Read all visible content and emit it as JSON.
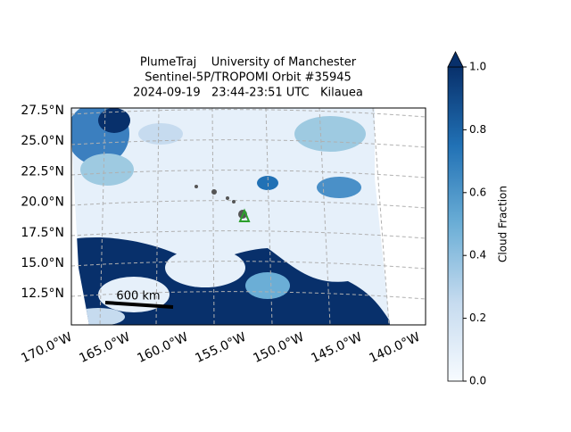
{
  "header": {
    "title_lines": [
      "PlumeTraj    University of Manchester",
      "Sentinel-5P/TROPOMI Orbit #35945",
      "2024-09-19   23:44-23:51 UTC   Kilauea"
    ]
  },
  "map": {
    "lat_labels": [
      "27.5°N",
      "25.0°N",
      "22.5°N",
      "20.0°N",
      "17.5°N",
      "15.0°N",
      "12.5°N"
    ],
    "lon_labels": [
      "170.0°W",
      "165.0°W",
      "160.0°W",
      "155.0°W",
      "150.0°W",
      "145.0°W",
      "140.0°W"
    ],
    "scale_bar": "600 km"
  },
  "colorbar": {
    "label": "Cloud Fraction",
    "range": [
      0,
      1
    ],
    "colormap": "Blues",
    "ticks": [
      {
        "value": 0,
        "label": "0.0"
      },
      0.2,
      0.4,
      0.6,
      0.8,
      {
        "value": 1,
        "label": "1.0"
      }
    ]
  }
}
